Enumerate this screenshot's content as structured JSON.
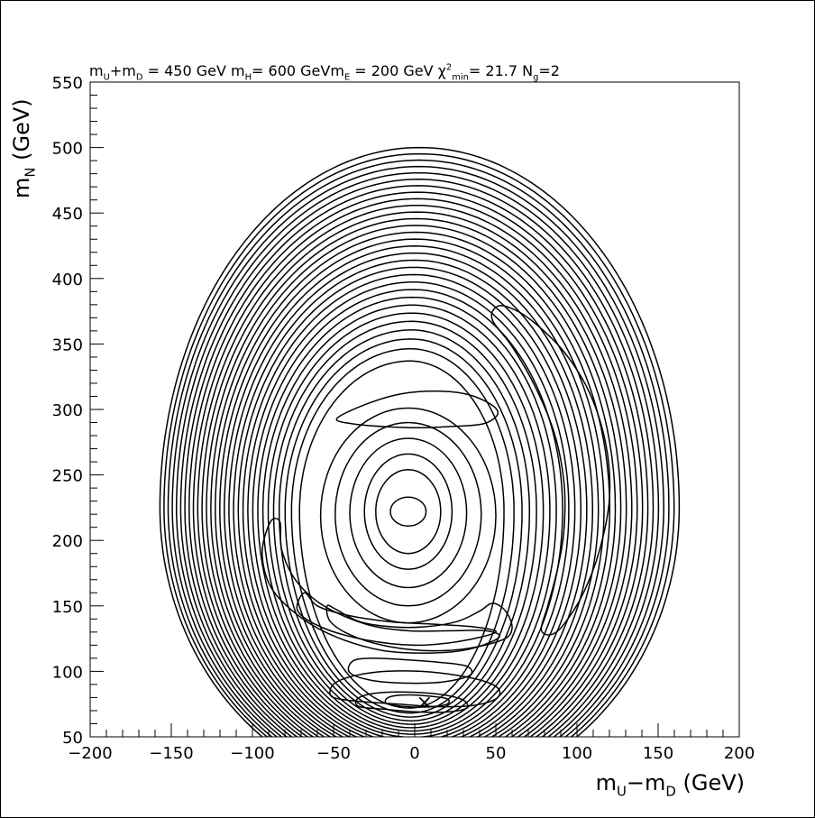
{
  "chart_data": {
    "type": "contour",
    "title": {
      "parts": [
        {
          "t": "m",
          "s": ""
        },
        {
          "t": "U",
          "s": "sub"
        },
        {
          "t": "+m",
          "s": ""
        },
        {
          "t": "D",
          "s": "sub"
        },
        {
          "t": " = 450   GeV  m",
          "s": ""
        },
        {
          "t": "H",
          "s": "sub"
        },
        {
          "t": "= 600   GeVm",
          "s": ""
        },
        {
          "t": "E",
          "s": "sub"
        },
        {
          "t": " = 200  GeV  χ",
          "s": ""
        },
        {
          "t": "2",
          "s": "sup"
        },
        {
          "t": "min",
          "s": "sub"
        },
        {
          "t": "=  21.7  N",
          "s": ""
        },
        {
          "t": "g",
          "s": "sub"
        },
        {
          "t": "=2",
          "s": ""
        }
      ]
    },
    "xlabel": {
      "parts": [
        {
          "t": "m",
          "s": ""
        },
        {
          "t": "U",
          "s": "sub"
        },
        {
          "t": "−m",
          "s": ""
        },
        {
          "t": "D",
          "s": "sub"
        },
        {
          "t": " (GeV)",
          "s": ""
        }
      ]
    },
    "ylabel": {
      "parts": [
        {
          "t": "m",
          "s": ""
        },
        {
          "t": "N",
          "s": "sub"
        },
        {
          "t": " (GeV)",
          "s": ""
        }
      ]
    },
    "xlim": [
      -200,
      200
    ],
    "ylim": [
      50,
      550
    ],
    "xticks": [
      {
        "value": -200,
        "label": "−200"
      },
      {
        "value": -150,
        "label": "−150"
      },
      {
        "value": -100,
        "label": "−100"
      },
      {
        "value": -50,
        "label": "−50"
      },
      {
        "value": 0,
        "label": "0"
      },
      {
        "value": 50,
        "label": "50"
      },
      {
        "value": 100,
        "label": "100"
      },
      {
        "value": 150,
        "label": "150"
      },
      {
        "value": 200,
        "label": "200"
      }
    ],
    "yticks": [
      {
        "value": 50,
        "label": "50"
      },
      {
        "value": 100,
        "label": "100"
      },
      {
        "value": 150,
        "label": "150"
      },
      {
        "value": 200,
        "label": "200"
      },
      {
        "value": 250,
        "label": "250"
      },
      {
        "value": 300,
        "label": "300"
      },
      {
        "value": 350,
        "label": "350"
      },
      {
        "value": 400,
        "label": "400"
      },
      {
        "value": 450,
        "label": "450"
      },
      {
        "value": 500,
        "label": "500"
      },
      {
        "value": 550,
        "label": "550"
      }
    ],
    "minimum_marker": {
      "label": "×",
      "x": 6,
      "y": 77
    },
    "contours": {
      "outer_family": {
        "count": 30,
        "innermost": {
          "cx": -3,
          "cy": 222,
          "rx_left": 68,
          "rx_right": 58,
          "ry_top": 115,
          "ry_bottom": 150
        },
        "outermost": {
          "cx": 3,
          "cy": 225,
          "rx_left": 160,
          "rx_right": 160,
          "ry_top": 275,
          "ry_bottom": 220
        }
      },
      "inner_ellipses": [
        {
          "cx": -4,
          "cy": 222,
          "rx": 11,
          "ry": 11
        },
        {
          "cx": -4,
          "cy": 222,
          "rx": 20,
          "ry": 32
        },
        {
          "cx": -4,
          "cy": 222,
          "rx": 27,
          "ry": 44
        },
        {
          "cx": -4,
          "cy": 221,
          "rx": 36,
          "ry": 57
        },
        {
          "cx": -4,
          "cy": 220,
          "rx": 45,
          "ry": 70
        },
        {
          "cx": -4,
          "cy": 219,
          "rx": 54,
          "ry": 82
        }
      ],
      "closed_curves": [
        [
          [
            -48,
            293
          ],
          [
            -30,
            304
          ],
          [
            -8,
            312
          ],
          [
            16,
            314
          ],
          [
            34,
            311
          ],
          [
            48,
            303
          ],
          [
            51,
            296
          ],
          [
            42,
            289
          ],
          [
            22,
            287
          ],
          [
            3,
            286
          ],
          [
            -20,
            287
          ],
          [
            -38,
            289
          ]
        ],
        [
          [
            -89,
            214
          ],
          [
            -94,
            190
          ],
          [
            -88,
            163
          ],
          [
            -70,
            141
          ],
          [
            -48,
            126
          ],
          [
            -20,
            116
          ],
          [
            10,
            114
          ],
          [
            34,
            117
          ],
          [
            52,
            126
          ],
          [
            44,
            131
          ],
          [
            22,
            131
          ],
          [
            -4,
            131
          ],
          [
            -30,
            136
          ],
          [
            -56,
            150
          ],
          [
            -73,
            169
          ],
          [
            -82,
            193
          ],
          [
            -83,
            214
          ]
        ],
        [
          [
            -68,
            160
          ],
          [
            -72,
            146
          ],
          [
            -56,
            133
          ],
          [
            -30,
            124
          ],
          [
            0,
            120
          ],
          [
            28,
            123
          ],
          [
            50,
            130
          ],
          [
            36,
            134
          ],
          [
            12,
            136
          ],
          [
            -16,
            138
          ],
          [
            -42,
            143
          ],
          [
            -60,
            150
          ]
        ],
        [
          [
            50,
            378
          ],
          [
            58,
            378
          ],
          [
            72,
            368
          ],
          [
            92,
            344
          ],
          [
            108,
            312
          ],
          [
            118,
            272
          ],
          [
            120,
            232
          ],
          [
            114,
            193
          ],
          [
            104,
            160
          ],
          [
            92,
            136
          ],
          [
            84,
            128
          ],
          [
            78,
            132
          ],
          [
            82,
            150
          ],
          [
            88,
            178
          ],
          [
            92,
            208
          ],
          [
            92,
            244
          ],
          [
            86,
            282
          ],
          [
            74,
            318
          ],
          [
            60,
            348
          ],
          [
            48,
            368
          ]
        ],
        [
          [
            -54,
            150
          ],
          [
            -52,
            138
          ],
          [
            -40,
            128
          ],
          [
            -20,
            120
          ],
          [
            4,
            116
          ],
          [
            30,
            117
          ],
          [
            54,
            124
          ],
          [
            60,
            133
          ],
          [
            56,
            146
          ],
          [
            48,
            152
          ],
          [
            40,
            146
          ],
          [
            26,
            138
          ],
          [
            6,
            134
          ],
          [
            -14,
            134
          ],
          [
            -34,
            138
          ],
          [
            -48,
            147
          ]
        ],
        [
          [
            -38,
            108
          ],
          [
            -40,
            99
          ],
          [
            -26,
            93
          ],
          [
            -4,
            91
          ],
          [
            18,
            92
          ],
          [
            34,
            97
          ],
          [
            32,
            104
          ],
          [
            14,
            107
          ],
          [
            -8,
            109
          ],
          [
            -26,
            110
          ]
        ],
        [
          [
            -52,
            86
          ],
          [
            -50,
            80
          ],
          [
            -34,
            77
          ],
          [
            -10,
            75
          ],
          [
            14,
            73
          ],
          [
            36,
            74
          ],
          [
            50,
            79
          ],
          [
            52,
            86
          ],
          [
            44,
            92
          ],
          [
            26,
            97
          ],
          [
            4,
            100
          ],
          [
            -18,
            100
          ],
          [
            -36,
            97
          ],
          [
            -48,
            92
          ]
        ],
        [
          [
            -36,
            78
          ],
          [
            -34,
            73
          ],
          [
            -18,
            71
          ],
          [
            2,
            69
          ],
          [
            20,
            69
          ],
          [
            32,
            72
          ],
          [
            30,
            78
          ],
          [
            18,
            82
          ],
          [
            0,
            84
          ],
          [
            -18,
            84
          ],
          [
            -30,
            82
          ]
        ],
        [
          [
            -18,
            78
          ],
          [
            -16,
            75
          ],
          [
            -4,
            73
          ],
          [
            10,
            73
          ],
          [
            20,
            75
          ],
          [
            20,
            79
          ],
          [
            10,
            81
          ],
          [
            -4,
            82
          ],
          [
            -14,
            81
          ]
        ]
      ]
    }
  }
}
